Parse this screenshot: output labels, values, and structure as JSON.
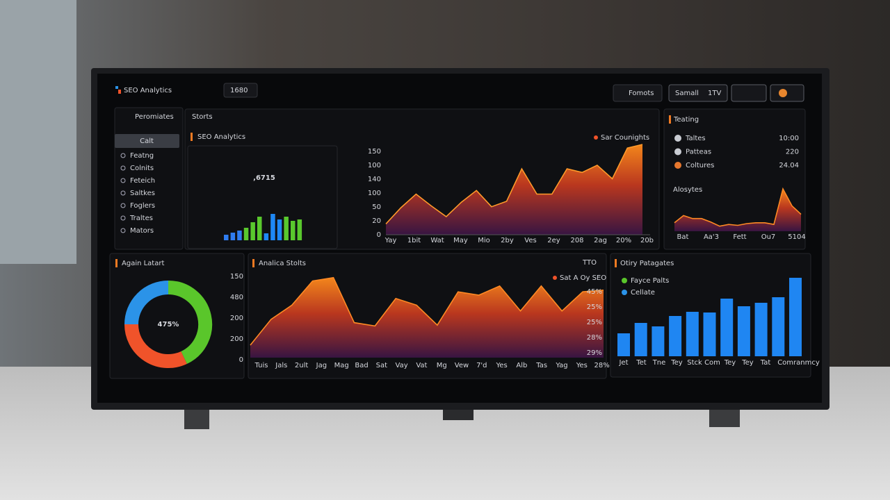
{
  "header": {
    "title": "SEO Analytics",
    "range": "1680",
    "buttons": [
      "Fomots",
      "Samall",
      "1TV"
    ]
  },
  "sidebar": {
    "heading": "Peromiates",
    "active": "Calt",
    "items": [
      "Featng",
      "Colnits",
      "Feteich",
      "Saltkes",
      "Foglers",
      "Traltes",
      "Mators"
    ]
  },
  "stats": {
    "heading": "Storts",
    "kpi": {
      "title": "SEO Analytics",
      "value": ",6715",
      "bars": [
        8,
        11,
        14,
        18,
        26,
        34,
        10,
        38,
        30,
        34,
        28,
        30
      ],
      "bar_colors": [
        "#2f7cf0",
        "#2f7cf0",
        "#2f7cf0",
        "#59c82d",
        "#59c82d",
        "#59c82d",
        "#1e88f5",
        "#1e88f5",
        "#1e88f5",
        "#59c82d",
        "#59c82d",
        "#59c82d"
      ]
    },
    "area": {
      "legend": "Sar Counights",
      "y_labels": [
        "150",
        "100",
        "140",
        "100",
        "50",
        "20",
        "0"
      ],
      "x_labels": [
        "Yay",
        "1bit",
        "Wat",
        "May",
        "Mio",
        "2by",
        "Ves",
        "2ey",
        "208",
        "2ag",
        "20%",
        "20b"
      ],
      "values": [
        12,
        30,
        45,
        32,
        20,
        36,
        49,
        31,
        37,
        73,
        45,
        45,
        73,
        69,
        77,
        62,
        96,
        100
      ],
      "ylim": [
        0,
        100
      ]
    }
  },
  "trending": {
    "heading": "Teating",
    "rows": [
      [
        "Taltes",
        "10:00"
      ],
      [
        "Patteas",
        "220"
      ],
      [
        "Coltures",
        "24.04"
      ]
    ],
    "row_colors": [
      "#c9ccd3",
      "#c9ccd3",
      "#e6772e"
    ],
    "sub_heading": "Alosytes",
    "x_labels": [
      "Bat",
      "Aa'3",
      "Fett",
      "Ou7",
      "5104"
    ],
    "values": [
      20,
      37,
      30,
      30,
      22,
      12,
      16,
      14,
      18,
      20,
      20,
      16,
      100,
      60,
      40
    ],
    "ylim": [
      0,
      100
    ]
  },
  "donut": {
    "title": "Again Latart",
    "center": "475%",
    "y_labels": [
      "150",
      "480",
      "200",
      "200",
      "0"
    ],
    "values": [
      43,
      32,
      25
    ],
    "colors": [
      "#5ac62b",
      "#f0532a",
      "#2b93e8"
    ]
  },
  "analytics": {
    "title": "Analica Stolts",
    "badge": "TTO",
    "legend": "Sat A Oy SEO",
    "right_labels": [
      "45%",
      "25%",
      "25%",
      "28%",
      "29%"
    ],
    "x_labels": [
      "Tuis",
      "Jals",
      "2ult",
      "Jag",
      "Mag",
      "Bad",
      "Sat",
      "Vay",
      "Vat",
      "Mg",
      "Vew",
      "7'd",
      "Yes",
      "Alb",
      "Tas",
      "Yag",
      "Yes",
      "28%"
    ],
    "values": [
      15,
      46,
      63,
      92,
      96,
      42,
      38,
      71,
      63,
      39,
      79,
      75,
      86,
      56,
      86,
      56,
      79,
      81
    ],
    "ylim": [
      0,
      100
    ]
  },
  "pages": {
    "title": "Otiry Patagates",
    "legend": [
      {
        "name": "Fayce Palts",
        "color": "#5ac62b"
      },
      {
        "name": "Cellate",
        "color": "#2b93e8"
      }
    ],
    "x_labels": [
      "Jet",
      "Tet",
      "Tne",
      "Tey",
      "Stck",
      "Com",
      "Tey",
      "Tey",
      "Tat",
      "Comranmcy"
    ],
    "values": [
      33,
      48,
      43,
      58,
      64,
      63,
      83,
      72,
      77,
      85,
      113
    ],
    "ylim": [
      0,
      120
    ],
    "color": "#1f86f2"
  }
}
